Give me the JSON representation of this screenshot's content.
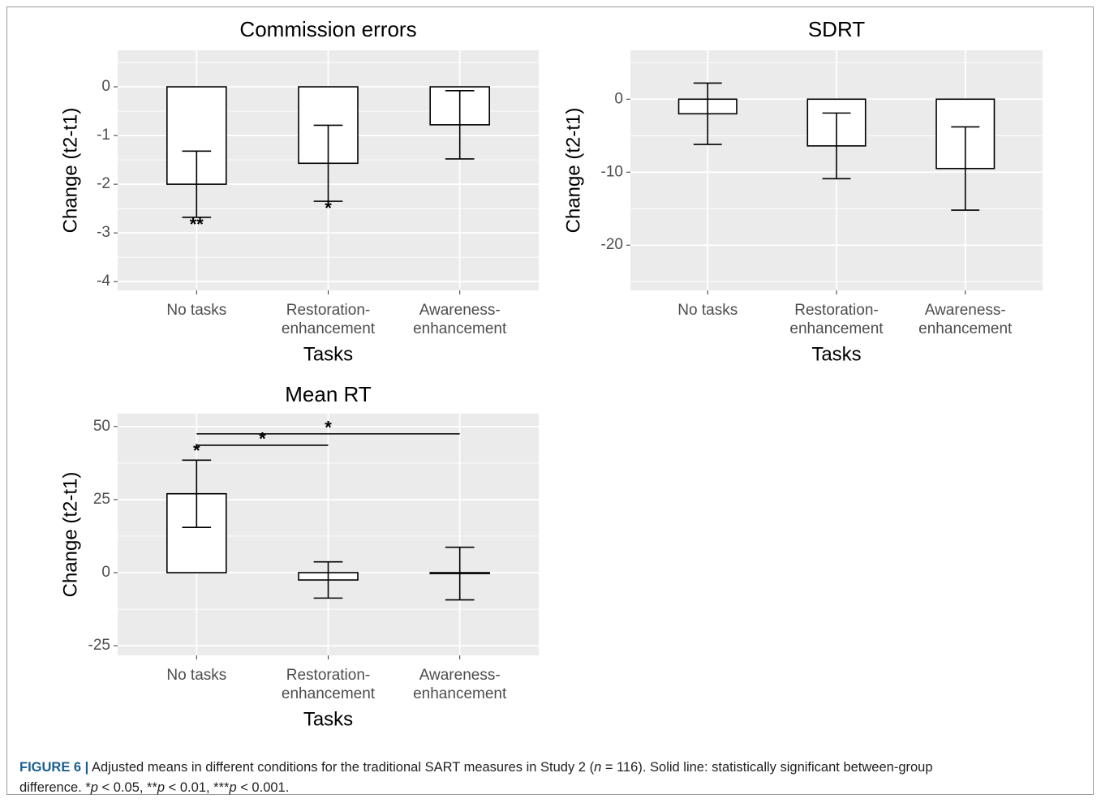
{
  "chart_data": [
    {
      "type": "bar",
      "title": "Commission errors",
      "x_label": "Tasks",
      "y_label": "Change (t2-t1)",
      "categories": [
        [
          "No tasks"
        ],
        [
          "Restoration-",
          "enhancement"
        ],
        [
          "Awareness-",
          "enhancement"
        ]
      ],
      "values": [
        -2,
        -1.57,
        -0.78
      ],
      "errors": [
        0.68,
        0.78,
        0.7
      ],
      "significance": [
        "**",
        "*",
        null
      ],
      "ylim": [
        -4.18,
        0.75
      ],
      "yticks": [
        0,
        -1,
        -2,
        -3,
        -4
      ],
      "grid": true,
      "color": "#ffffff"
    },
    {
      "type": "bar",
      "title": "SDRT",
      "x_label": "Tasks",
      "y_label": "Change (t2-t1)",
      "categories": [
        [
          "No tasks"
        ],
        [
          "Restoration-",
          "enhancement"
        ],
        [
          "Awareness-",
          "enhancement"
        ]
      ],
      "values": [
        -2,
        -6.4,
        -9.5
      ],
      "errors": [
        4.2,
        4.5,
        5.7
      ],
      "significance": [
        null,
        null,
        null
      ],
      "ylim": [
        -26.2,
        6.7
      ],
      "yticks": [
        0,
        -10,
        -20
      ],
      "grid": true,
      "color": "#ffffff"
    },
    {
      "type": "bar",
      "title": "Mean RT",
      "x_label": "Tasks",
      "y_label": "Change (t2-t1)",
      "categories": [
        [
          "No tasks"
        ],
        [
          "Restoration-",
          "enhancement"
        ],
        [
          "Awareness-",
          "enhancement"
        ]
      ],
      "values": [
        27,
        -2.5,
        -0.3
      ],
      "errors": [
        11.5,
        6.2,
        9
      ],
      "significance": [
        "*",
        null,
        null
      ],
      "comparisons": [
        {
          "pair": [
            0,
            1
          ],
          "y": 43.6,
          "label": "*"
        },
        {
          "pair": [
            0,
            2
          ],
          "y": 47.5,
          "label": "*"
        }
      ],
      "ylim": [
        -28.3,
        54.4
      ],
      "yticks": [
        -25,
        0,
        25,
        50
      ],
      "grid": true,
      "color": "#ffffff"
    }
  ],
  "caption": [
    [
      {
        "text": "FIGURE 6 |",
        "style": "bold"
      },
      {
        "text": " Adjusted means in different conditions for the traditional SART measures in Study 2 ("
      },
      {
        "text": "n",
        "style": "italic"
      },
      {
        "text": " = 116). Solid line: statistically significant between-group"
      }
    ],
    [
      {
        "text": "difference. *"
      },
      {
        "text": "p",
        "style": "italic"
      },
      {
        "text": " < 0.05, **"
      },
      {
        "text": "p",
        "style": "italic"
      },
      {
        "text": " < 0.01, ***"
      },
      {
        "text": "p",
        "style": "italic"
      },
      {
        "text": " < 0.001."
      }
    ]
  ]
}
